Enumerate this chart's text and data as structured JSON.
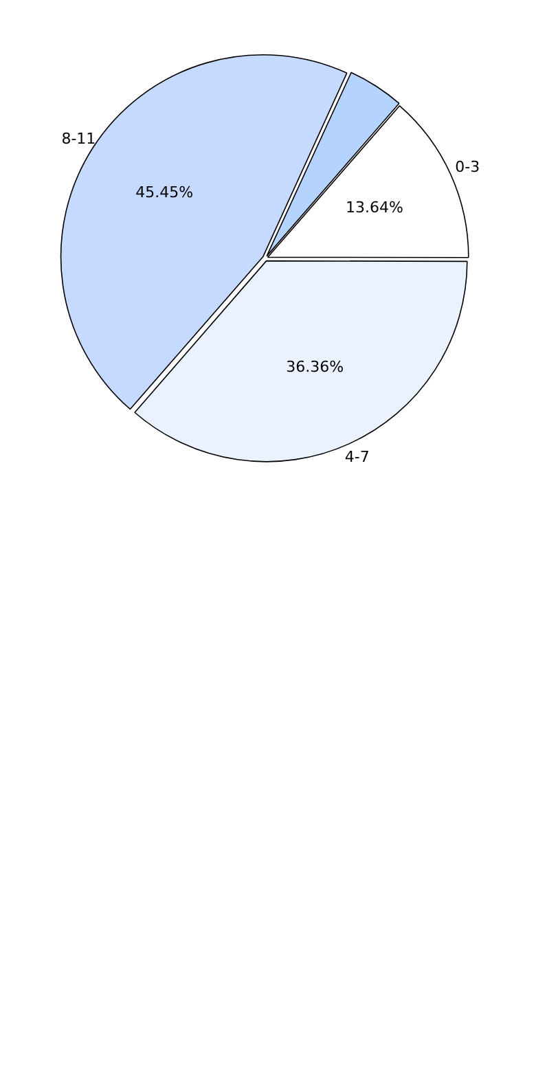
{
  "chart_data": {
    "type": "pie",
    "categories": [
      "0-3",
      "4-7",
      "8-11",
      null
    ],
    "values": [
      13.64,
      36.36,
      45.45,
      4.55
    ],
    "colors": [
      "#ffffff",
      "#eaf2ff",
      "#c6d9ff",
      "#b5d3ff"
    ],
    "value_labels": [
      "13.64%",
      "36.36%",
      "45.45%",
      null
    ],
    "legend": false
  }
}
